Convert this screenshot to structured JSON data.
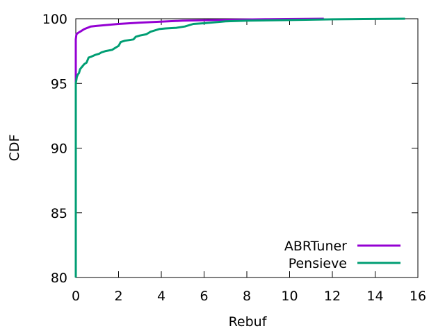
{
  "chart_data": {
    "type": "line",
    "title": "",
    "xlabel": "Rebuf",
    "ylabel": "CDF",
    "xlim": [
      0,
      16
    ],
    "ylim": [
      80,
      100
    ],
    "xticks": [
      0,
      2,
      4,
      6,
      8,
      10,
      12,
      14,
      16
    ],
    "yticks": [
      80,
      85,
      90,
      95,
      100
    ],
    "xtick_labels": [
      "0",
      "2",
      "4",
      "6",
      "8",
      "10",
      "12",
      "14",
      "16"
    ],
    "ytick_labels": [
      "80",
      "85",
      "90",
      "95",
      "100"
    ],
    "grid": false,
    "legend_position": "bottom-right",
    "series": [
      {
        "name": "ABRTuner",
        "color": "#9400d3",
        "x": [
          0,
          0,
          0.03,
          0.1,
          0.2,
          0.4,
          0.7,
          1.0,
          2.0,
          3.0,
          5.0,
          7.0,
          9.0,
          11.6
        ],
        "y": [
          80,
          98.4,
          98.8,
          98.9,
          99.0,
          99.2,
          99.4,
          99.45,
          99.6,
          99.7,
          99.85,
          99.92,
          99.96,
          100
        ]
      },
      {
        "name": "Pensieve",
        "color": "#009e73",
        "x": [
          0,
          0,
          0.05,
          0.1,
          0.15,
          0.2,
          0.3,
          0.4,
          0.5,
          0.6,
          0.7,
          0.9,
          1.1,
          1.2,
          1.4,
          1.7,
          1.9,
          2.0,
          2.1,
          2.3,
          2.7,
          2.8,
          3.0,
          3.3,
          3.5,
          3.7,
          3.9,
          4.2,
          4.7,
          5.1,
          5.5,
          6.0,
          7.0,
          8.0,
          10.0,
          12.0,
          15.4
        ],
        "y": [
          80,
          95.0,
          95.5,
          95.7,
          95.8,
          96.1,
          96.3,
          96.5,
          96.6,
          97.0,
          97.05,
          97.2,
          97.3,
          97.4,
          97.5,
          97.6,
          97.8,
          97.9,
          98.2,
          98.3,
          98.4,
          98.6,
          98.7,
          98.8,
          99.0,
          99.1,
          99.2,
          99.25,
          99.3,
          99.4,
          99.6,
          99.65,
          99.8,
          99.85,
          99.9,
          99.95,
          100
        ]
      }
    ]
  }
}
